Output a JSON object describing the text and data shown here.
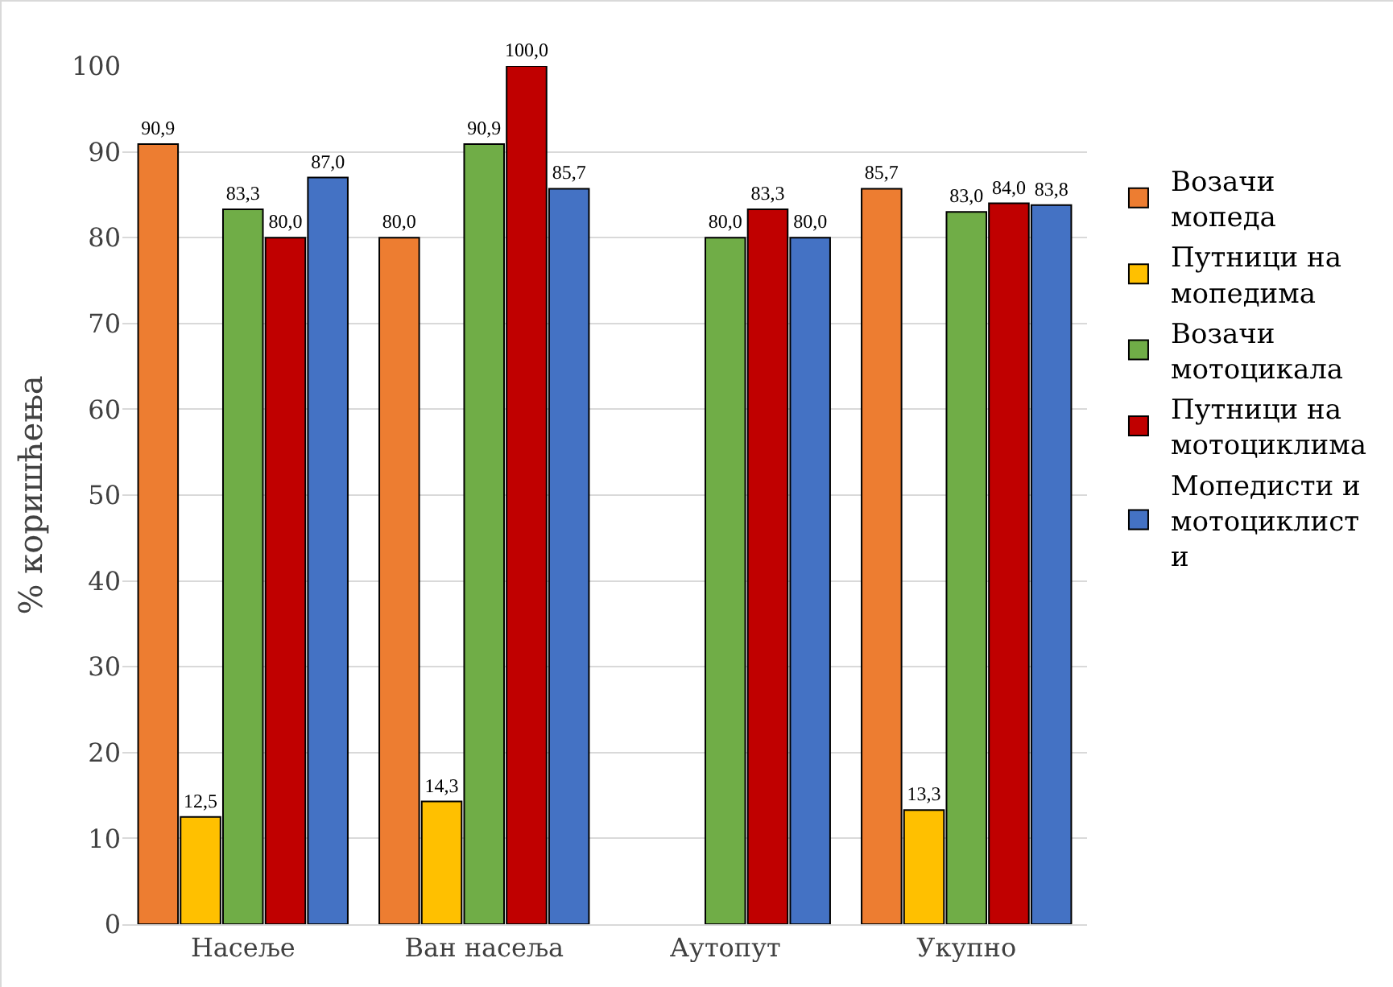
{
  "chart_data": {
    "type": "bar",
    "ylabel": "% коришћења",
    "categories": [
      "Насеље",
      "Ван насеља",
      "Аутопут",
      "Укупно"
    ],
    "series": [
      {
        "name": "Возачи мопеда",
        "color": "#ed7d31",
        "values": [
          90.9,
          80.0,
          null,
          85.7
        ],
        "value_labels": [
          "90,9",
          "80,0",
          null,
          "85,7"
        ]
      },
      {
        "name": "Путници на мопедима",
        "color": "#ffc000",
        "values": [
          12.5,
          14.3,
          null,
          13.3
        ],
        "value_labels": [
          "12,5",
          "14,3",
          null,
          "13,3"
        ]
      },
      {
        "name": "Возачи мотоцикала",
        "color": "#70ad47",
        "values": [
          83.3,
          90.9,
          80.0,
          83.0
        ],
        "value_labels": [
          "83,3",
          "90,9",
          "80,0",
          "83,0"
        ]
      },
      {
        "name": "Путници на мотоциклима",
        "color": "#c00000",
        "values": [
          80.0,
          100.0,
          83.3,
          84.0
        ],
        "value_labels": [
          "80,0",
          "100,0",
          "83,3",
          "84,0"
        ]
      },
      {
        "name": "Мопедисти и мотоциклисти",
        "color": "#4472c4",
        "values": [
          87.0,
          85.7,
          80.0,
          83.8
        ],
        "value_labels": [
          "87,0",
          "85,7",
          "80,0",
          "83,8"
        ]
      }
    ],
    "ylim": [
      0,
      100
    ],
    "yticks": [
      0,
      10,
      20,
      30,
      40,
      50,
      60,
      70,
      80,
      90,
      100
    ],
    "grid": "y",
    "legend": "right"
  }
}
